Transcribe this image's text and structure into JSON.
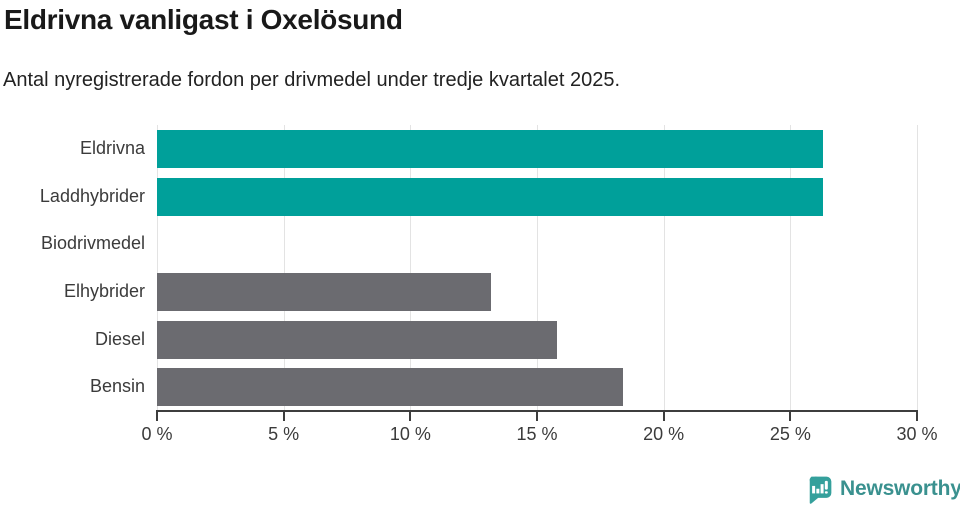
{
  "header": {
    "title": "Eldrivna vanligast i Oxelösund",
    "subtitle": "Antal nyregistrerade fordon per drivmedel under tredje kvartalet 2025."
  },
  "chart_data": {
    "type": "bar",
    "orientation": "horizontal",
    "title": "Eldrivna vanligast i Oxelösund",
    "subtitle": "Antal nyregistrerade fordon per drivmedel under tredje kvartalet 2025.",
    "categories": [
      "Eldrivna",
      "Laddhybrider",
      "Biodrivmedel",
      "Elhybrider",
      "Diesel",
      "Bensin"
    ],
    "values": [
      26.3,
      26.3,
      0,
      13.2,
      15.8,
      18.4
    ],
    "bar_colors": [
      "#00a09a",
      "#00a09a",
      "#00a09a",
      "#6b6b70",
      "#6b6b70",
      "#6b6b70"
    ],
    "unit": "%",
    "xlabel": "",
    "ylabel": "",
    "xlim": [
      0,
      30
    ],
    "x_tick_values": [
      0,
      5,
      10,
      15,
      20,
      25,
      30
    ],
    "x_tick_labels": [
      "0 %",
      "5 %",
      "10 %",
      "15 %",
      "20 %",
      "25 %",
      "30 %"
    ],
    "grid": "vertical-light",
    "legend": "none"
  },
  "colors": {
    "highlight": "#00a09a",
    "neutral": "#6b6b70",
    "axis": "#3d3d3d",
    "grid": "#e3e3e3",
    "brand": "#3a918f",
    "logo_background": "#35a09c"
  },
  "footer": {
    "brand": "Newsworthy"
  }
}
